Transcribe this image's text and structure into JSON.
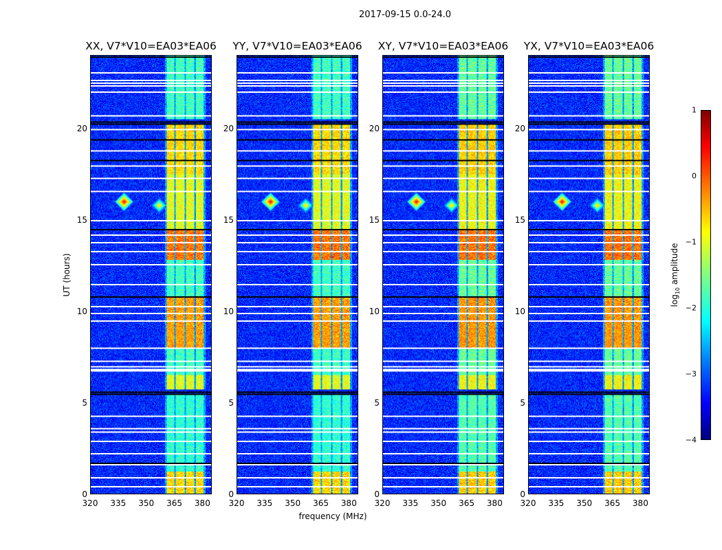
{
  "chart_data": {
    "type": "heatmap",
    "title": "2017-09-15 0.0-24.0",
    "xlabel": "frequency (MHz)",
    "ylabel": "UT (hours)",
    "xlim": [
      320,
      385
    ],
    "ylim": [
      0,
      24
    ],
    "xticks": [
      "320",
      "335",
      "350",
      "365",
      "380"
    ],
    "xtick_values": [
      320,
      335,
      350,
      365,
      380
    ],
    "yticks": [
      "0",
      "5",
      "10",
      "15",
      "20"
    ],
    "ytick_values": [
      0,
      5,
      10,
      15,
      20
    ],
    "panels": [
      {
        "title": "XX, V7*V10=EA03*EA06",
        "scale": 1.0
      },
      {
        "title": "YY, V7*V10=EA03*EA06",
        "scale": 1.0
      },
      {
        "title": "XY, V7*V10=EA03*EA06",
        "scale": 0.9
      },
      {
        "title": "YX, V7*V10=EA03*EA06",
        "scale": 0.9
      }
    ],
    "colorbar": {
      "label_prefix": "log",
      "label_sub": "10",
      "label_suffix": " amplitude",
      "range": [
        -4,
        1
      ],
      "ticks": [
        "1",
        "0",
        "−1",
        "−2",
        "−3",
        "−4"
      ],
      "tick_values": [
        1,
        0,
        -1,
        -2,
        -3,
        -4
      ],
      "colormap": "jet"
    },
    "background_log_amplitude": -3.2,
    "bright_band_mhz": [
      [
        361,
        365
      ],
      [
        365.8,
        370.6
      ],
      [
        371.4,
        376
      ],
      [
        376.8,
        381
      ]
    ],
    "band_level_by_time": [
      {
        "t": [
          20.5,
          24
        ],
        "level": -1.8
      },
      {
        "t": [
          17.5,
          20.2
        ],
        "level": -0.7
      },
      {
        "t": [
          14.5,
          17.5
        ],
        "level": -1.0
      },
      {
        "t": [
          12.8,
          14.5
        ],
        "level": -0.2
      },
      {
        "t": [
          10.8,
          12.8
        ],
        "level": -1.8
      },
      {
        "t": [
          8.0,
          10.8
        ],
        "level": -0.4
      },
      {
        "t": [
          6.0,
          8.0
        ],
        "level": -1.8
      },
      {
        "t": [
          5.7,
          6.5
        ],
        "level": -1.0
      },
      {
        "t": [
          3.0,
          5.5
        ],
        "level": -1.9
      },
      {
        "t": [
          1.2,
          3.0
        ],
        "level": -1.9
      },
      {
        "t": [
          0,
          1.2
        ],
        "level": -0.7
      }
    ],
    "rfi_spikes": [
      {
        "freq": 338,
        "time": 16.0,
        "level": 0.5
      },
      {
        "freq": 357,
        "time": 15.8,
        "level": -0.5
      }
    ],
    "flagged_white_hours": [
      23.1,
      22.7,
      22.55,
      22.4,
      22.05,
      20.75,
      20.0,
      18.8,
      18.0,
      17.3,
      16.6,
      15.0,
      14.2,
      13.8,
      13.3,
      12.6,
      11.5,
      10.3,
      9.9,
      9.5,
      8.0,
      7.3,
      7.0,
      6.75,
      6.85,
      4.3,
      3.6,
      3.4,
      2.9,
      2.2,
      1.6,
      0.9,
      0.4
    ],
    "zero_black_hours": [
      23.95,
      20.4,
      20.3,
      19.4,
      18.3,
      14.5,
      10.8,
      5.6,
      5.5,
      1.7
    ]
  }
}
